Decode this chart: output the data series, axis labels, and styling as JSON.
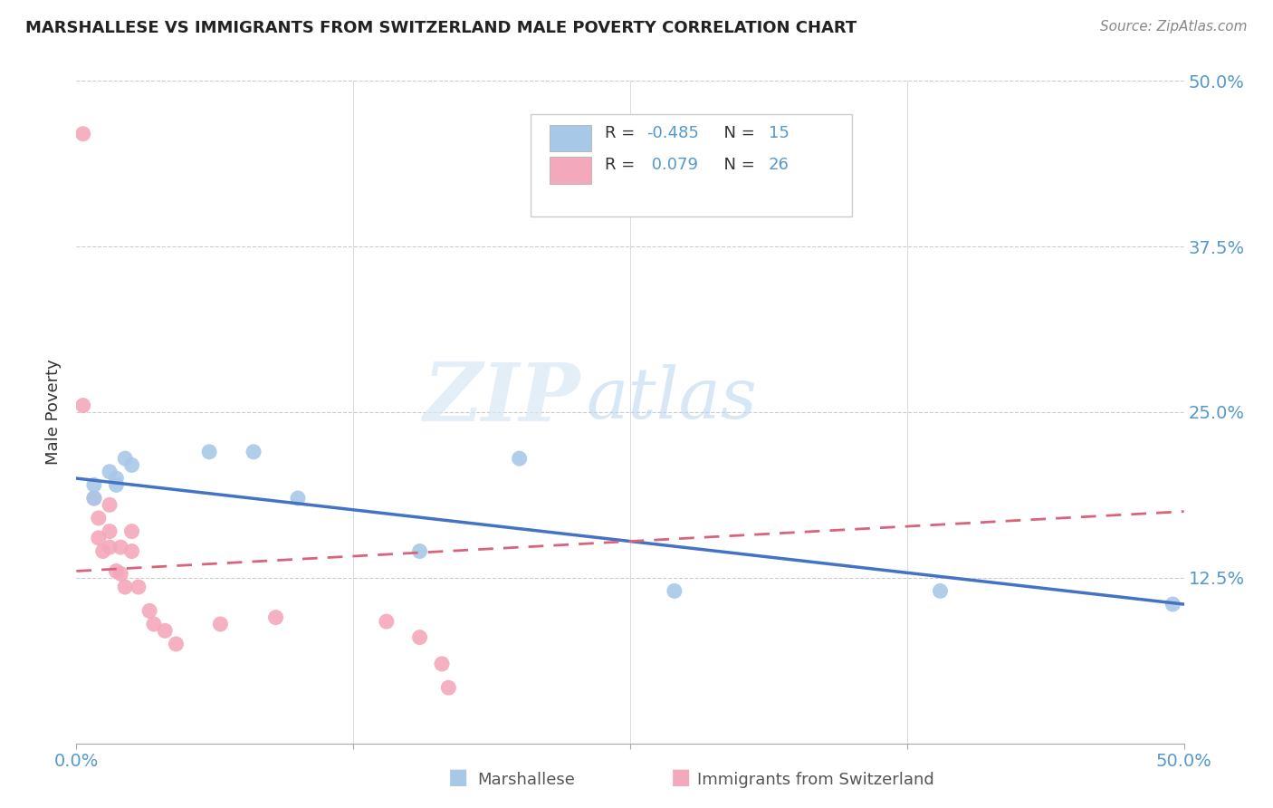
{
  "title": "MARSHALLESE VS IMMIGRANTS FROM SWITZERLAND MALE POVERTY CORRELATION CHART",
  "source": "Source: ZipAtlas.com",
  "ylabel": "Male Poverty",
  "xlim": [
    0.0,
    0.5
  ],
  "ylim": [
    0.0,
    0.5
  ],
  "blue_R": -0.485,
  "blue_N": 15,
  "pink_R": 0.079,
  "pink_N": 26,
  "blue_label": "Marshallese",
  "pink_label": "Immigrants from Switzerland",
  "blue_color": "#a8c8e8",
  "pink_color": "#f4a8bb",
  "blue_line_color": "#4472c4",
  "pink_line_color": "#d9637a",
  "blue_scatter": [
    [
      0.008,
      0.195
    ],
    [
      0.008,
      0.185
    ],
    [
      0.015,
      0.205
    ],
    [
      0.018,
      0.2
    ],
    [
      0.018,
      0.195
    ],
    [
      0.022,
      0.215
    ],
    [
      0.025,
      0.21
    ],
    [
      0.06,
      0.22
    ],
    [
      0.08,
      0.22
    ],
    [
      0.1,
      0.185
    ],
    [
      0.155,
      0.145
    ],
    [
      0.2,
      0.215
    ],
    [
      0.27,
      0.115
    ],
    [
      0.39,
      0.115
    ],
    [
      0.495,
      0.105
    ]
  ],
  "pink_scatter": [
    [
      0.003,
      0.46
    ],
    [
      0.003,
      0.255
    ],
    [
      0.008,
      0.185
    ],
    [
      0.01,
      0.17
    ],
    [
      0.01,
      0.155
    ],
    [
      0.012,
      0.145
    ],
    [
      0.015,
      0.18
    ],
    [
      0.015,
      0.16
    ],
    [
      0.015,
      0.148
    ],
    [
      0.018,
      0.13
    ],
    [
      0.02,
      0.148
    ],
    [
      0.02,
      0.128
    ],
    [
      0.022,
      0.118
    ],
    [
      0.025,
      0.16
    ],
    [
      0.025,
      0.145
    ],
    [
      0.028,
      0.118
    ],
    [
      0.033,
      0.1
    ],
    [
      0.035,
      0.09
    ],
    [
      0.04,
      0.085
    ],
    [
      0.045,
      0.075
    ],
    [
      0.065,
      0.09
    ],
    [
      0.09,
      0.095
    ],
    [
      0.14,
      0.092
    ],
    [
      0.155,
      0.08
    ],
    [
      0.165,
      0.06
    ],
    [
      0.168,
      0.042
    ]
  ],
  "blue_line_x": [
    0.0,
    0.5
  ],
  "blue_line_y": [
    0.2,
    0.105
  ],
  "pink_line_x": [
    0.0,
    0.5
  ],
  "pink_line_y": [
    0.13,
    0.175
  ],
  "watermark_zip": "ZIP",
  "watermark_atlas": "atlas",
  "background_color": "#ffffff",
  "grid_color": "#cccccc"
}
